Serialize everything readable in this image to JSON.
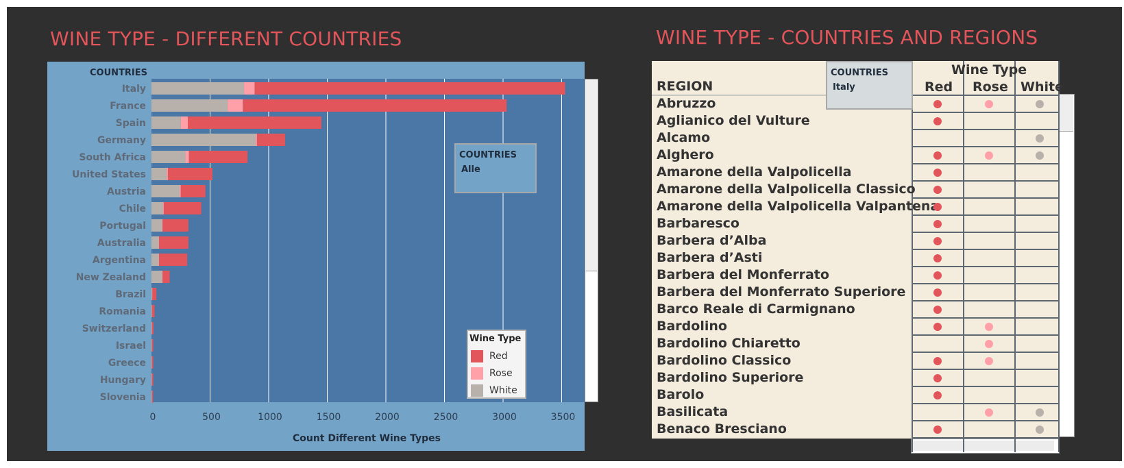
{
  "dashboard": {
    "left_title": "WINE TYPE - DIFFERENT COUNTRIES",
    "right_title": "WINE TYPE - COUNTRIES AND REGIONS"
  },
  "left_filter": {
    "title": "COUNTRIES",
    "value": "Alle"
  },
  "right_filter": {
    "title": "COUNTRIES",
    "value": "Italy"
  },
  "legend": {
    "title": "Wine Type",
    "items": [
      {
        "label": "Red",
        "color": "#e2555a"
      },
      {
        "label": "Rose",
        "color": "#ffa0a8"
      },
      {
        "label": "White",
        "color": "#b8b0aa"
      }
    ]
  },
  "chart_data": [
    {
      "type": "bar",
      "orientation": "horizontal",
      "stacked": true,
      "row_header": "COUNTRIES",
      "categories": [
        "Italy",
        "France",
        "Spain",
        "Germany",
        "South Africa",
        "United States",
        "Austria",
        "Chile",
        "Portugal",
        "Australia",
        "Argentina",
        "New Zealand",
        "Brazil",
        "Romania",
        "Switzerland",
        "Israel",
        "Greece",
        "Hungary",
        "Slovenia"
      ],
      "series": [
        {
          "name": "White",
          "color": "#b8b0aa",
          "values": [
            790,
            650,
            250,
            890,
            290,
            130,
            240,
            100,
            90,
            60,
            60,
            90,
            5,
            3,
            3,
            2,
            2,
            2,
            2
          ]
        },
        {
          "name": "Rose",
          "color": "#ffa0a8",
          "values": [
            90,
            130,
            60,
            10,
            30,
            10,
            10,
            5,
            5,
            5,
            5,
            5,
            2,
            1,
            1,
            1,
            1,
            1,
            1
          ]
        },
        {
          "name": "Red",
          "color": "#e2555a",
          "values": [
            2650,
            2250,
            1140,
            240,
            500,
            380,
            210,
            320,
            220,
            250,
            240,
            60,
            35,
            22,
            14,
            12,
            12,
            12,
            10
          ]
        }
      ],
      "xlabel": "Count Different Wine Types",
      "xticks": [
        0,
        500,
        1000,
        1500,
        2000,
        2500,
        3000,
        3500
      ],
      "xlim": [
        0,
        3700
      ],
      "grid": true,
      "legend_position": "bottom-right"
    },
    {
      "type": "table",
      "row_header": "REGION",
      "column_group_header": "Wine Type",
      "columns": [
        "Red",
        "Rose",
        "White"
      ],
      "colors": {
        "Red": "#e2555a",
        "Rose": "#ffa0a8",
        "White": "#b8b0aa"
      },
      "rows": [
        {
          "region": "Abruzzo",
          "red": true,
          "rose": true,
          "white": true
        },
        {
          "region": "Aglianico del Vulture",
          "red": true,
          "rose": false,
          "white": false
        },
        {
          "region": "Alcamo",
          "red": false,
          "rose": false,
          "white": true
        },
        {
          "region": "Alghero",
          "red": true,
          "rose": true,
          "white": true
        },
        {
          "region": "Amarone della Valpolicella",
          "red": true,
          "rose": false,
          "white": false
        },
        {
          "region": "Amarone della Valpolicella Classico",
          "red": true,
          "rose": false,
          "white": false
        },
        {
          "region": "Amarone della Valpolicella Valpantena",
          "red": true,
          "rose": false,
          "white": false
        },
        {
          "region": "Barbaresco",
          "red": true,
          "rose": false,
          "white": false
        },
        {
          "region": "Barbera d’Alba",
          "red": true,
          "rose": false,
          "white": false
        },
        {
          "region": "Barbera d’Asti",
          "red": true,
          "rose": false,
          "white": false
        },
        {
          "region": "Barbera del Monferrato",
          "red": true,
          "rose": false,
          "white": false
        },
        {
          "region": "Barbera del Monferrato Superiore",
          "red": true,
          "rose": false,
          "white": false
        },
        {
          "region": "Barco Reale di Carmignano",
          "red": true,
          "rose": false,
          "white": false
        },
        {
          "region": "Bardolino",
          "red": true,
          "rose": true,
          "white": false
        },
        {
          "region": "Bardolino Chiaretto",
          "red": false,
          "rose": true,
          "white": false
        },
        {
          "region": "Bardolino Classico",
          "red": true,
          "rose": true,
          "white": false
        },
        {
          "region": "Bardolino Superiore",
          "red": true,
          "rose": false,
          "white": false
        },
        {
          "region": "Barolo",
          "red": true,
          "rose": false,
          "white": false
        },
        {
          "region": "Basilicata",
          "red": false,
          "rose": true,
          "white": true
        },
        {
          "region": "Benaco Bresciano",
          "red": true,
          "rose": false,
          "white": true
        }
      ]
    }
  ]
}
